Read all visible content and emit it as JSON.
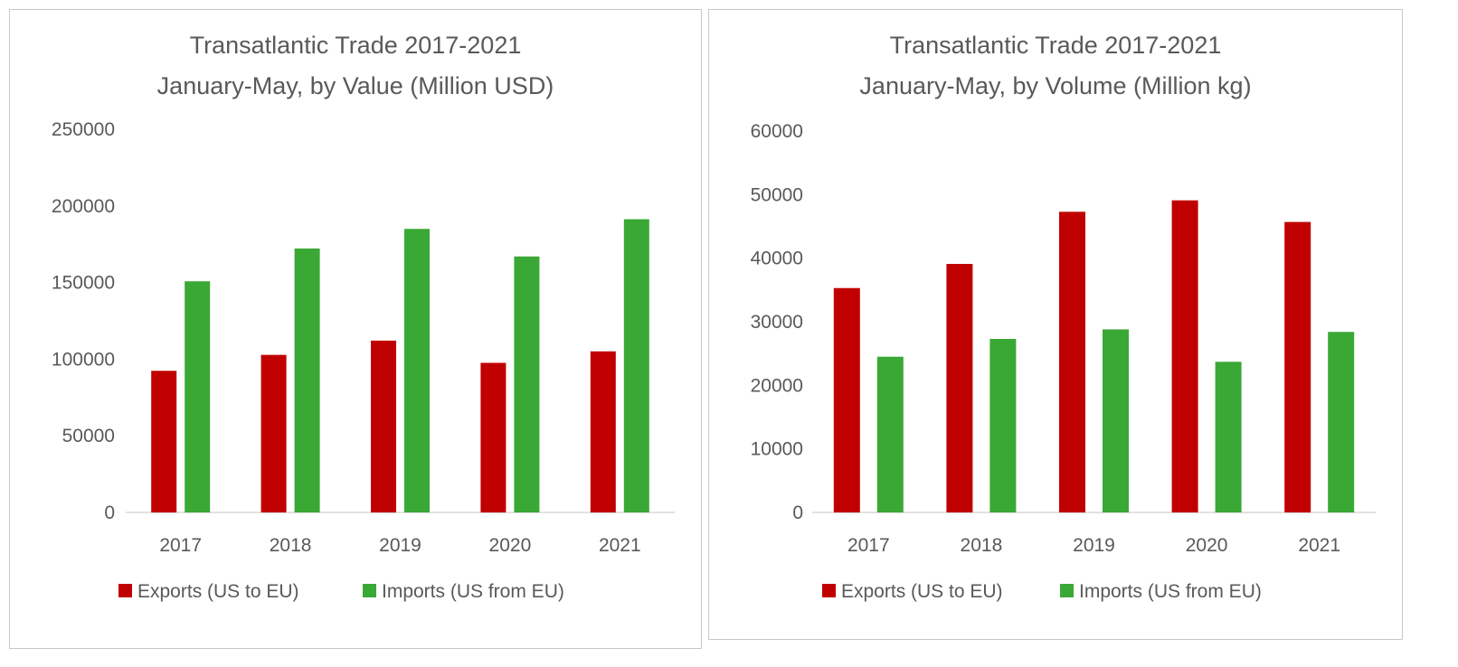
{
  "chart_data": [
    {
      "type": "bar",
      "title": "Transatlantic Trade 2017-2021",
      "subtitle": "January-May, by Value (Million USD)",
      "categories": [
        "2017",
        "2018",
        "2019",
        "2020",
        "2021"
      ],
      "ylim": [
        0,
        250000
      ],
      "yticks": [
        "0",
        "50000",
        "100000",
        "150000",
        "200000",
        "250000"
      ],
      "grid": false,
      "legend": "bottom",
      "series": [
        {
          "name": "Exports (US to EU)",
          "color": "#C00000",
          "values": [
            92400,
            102800,
            112100,
            97600,
            105100
          ]
        },
        {
          "name": "Imports (US from EU)",
          "color": "#3AA835",
          "values": [
            150800,
            172200,
            185000,
            167000,
            191300
          ]
        }
      ]
    },
    {
      "type": "bar",
      "title": "Transatlantic Trade 2017-2021",
      "subtitle": "January-May, by Volume (Million kg)",
      "categories": [
        "2017",
        "2018",
        "2019",
        "2020",
        "2021"
      ],
      "ylim": [
        0,
        60000
      ],
      "yticks": [
        "0",
        "10000",
        "20000",
        "30000",
        "40000",
        "50000",
        "60000"
      ],
      "grid": false,
      "legend": "bottom",
      "series": [
        {
          "name": "Exports (US to EU)",
          "color": "#C00000",
          "values": [
            35300,
            39100,
            47300,
            49100,
            45700
          ]
        },
        {
          "name": "Imports (US from EU)",
          "color": "#3AA835",
          "values": [
            24500,
            27300,
            28800,
            23700,
            28400
          ]
        }
      ]
    }
  ]
}
